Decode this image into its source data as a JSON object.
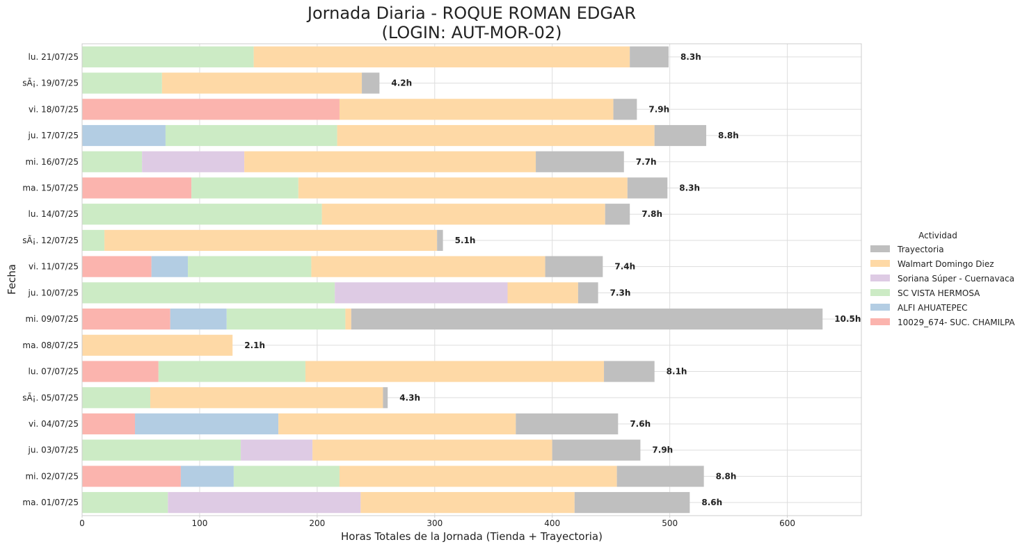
{
  "chart_data": {
    "type": "bar",
    "orientation": "horizontal",
    "stacked": true,
    "title": [
      "Jornada Diaria - ROQUE ROMAN EDGAR",
      "(LOGIN: AUT-MOR-02)"
    ],
    "xlabel": "Horas Totales de la Jornada (Tienda + Trayectoria)",
    "ylabel": "Fecha",
    "xlim": [
      0,
      663
    ],
    "xticks": [
      0,
      100,
      200,
      300,
      400,
      500,
      600
    ],
    "grid": true,
    "legend_title": "Actividad",
    "legend_position": "right",
    "legend_order": [
      "Trayectoria",
      "Walmart Domingo Diez",
      "Soriana Súper - Cuernavaca",
      "SC VISTA HERMOSA",
      "ALFI AHUATEPEC",
      "10029_674- SUC. CHAMILPA"
    ],
    "stack_order": [
      "10029_674- SUC. CHAMILPA",
      "ALFI AHUATEPEC",
      "SC VISTA HERMOSA",
      "Soriana Súper - Cuernavaca",
      "Walmart Domingo Diez",
      "Trayectoria"
    ],
    "colors": {
      "10029_674- SUC. CHAMILPA": "#fbb4ae",
      "ALFI AHUATEPEC": "#b3cde3",
      "SC VISTA HERMOSA": "#ccebc5",
      "Soriana Súper - Cuernavaca": "#decbe4",
      "Walmart Domingo Diez": "#fed9a6",
      "Trayectoria": "#bfbfbf"
    },
    "categories": [
      "lu. 21/07/25",
      "sÃ¡. 19/07/25",
      "vi. 18/07/25",
      "ju. 17/07/25",
      "mi. 16/07/25",
      "ma. 15/07/25",
      "lu. 14/07/25",
      "sÃ¡. 12/07/25",
      "vi. 11/07/25",
      "ju. 10/07/25",
      "mi. 09/07/25",
      "ma. 08/07/25",
      "lu. 07/07/25",
      "sÃ¡. 05/07/25",
      "vi. 04/07/25",
      "ju. 03/07/25",
      "mi. 02/07/25",
      "ma. 01/07/25"
    ],
    "series": [
      {
        "name": "10029_674- SUC. CHAMILPA",
        "values": [
          0,
          0,
          219,
          0,
          0,
          93,
          0,
          0,
          59,
          0,
          75,
          0,
          65,
          0,
          45,
          0,
          84,
          0
        ]
      },
      {
        "name": "ALFI AHUATEPEC",
        "values": [
          0,
          0,
          0,
          71,
          0,
          0,
          0,
          0,
          31,
          0,
          48,
          0,
          0,
          0,
          122,
          0,
          45,
          0
        ]
      },
      {
        "name": "SC VISTA HERMOSA",
        "values": [
          146,
          68,
          0,
          146,
          51,
          91,
          204,
          19,
          105,
          215,
          101,
          0,
          125,
          58,
          0,
          135,
          90,
          73
        ]
      },
      {
        "name": "Soriana Súper - Cuernavaca",
        "values": [
          0,
          0,
          0,
          0,
          87,
          0,
          0,
          0,
          0,
          147,
          0,
          0,
          0,
          0,
          0,
          61,
          0,
          164
        ]
      },
      {
        "name": "Walmart Domingo Diez",
        "values": [
          320,
          170,
          233,
          270,
          248,
          280,
          241,
          283,
          199,
          60,
          5,
          128,
          254,
          198,
          202,
          204,
          236,
          182
        ]
      },
      {
        "name": "Trayectoria",
        "values": [
          33,
          15,
          20,
          44,
          75,
          34,
          21,
          5,
          49,
          17,
          401,
          0,
          43,
          4,
          87,
          75,
          74,
          98
        ]
      }
    ],
    "totals_labels": [
      "8.3h",
      "4.2h",
      "7.9h",
      "8.8h",
      "7.7h",
      "8.3h",
      "7.8h",
      "5.1h",
      "7.4h",
      "7.3h",
      "10.5h",
      "2.1h",
      "8.1h",
      "4.3h",
      "7.6h",
      "7.9h",
      "8.8h",
      "8.6h"
    ]
  }
}
